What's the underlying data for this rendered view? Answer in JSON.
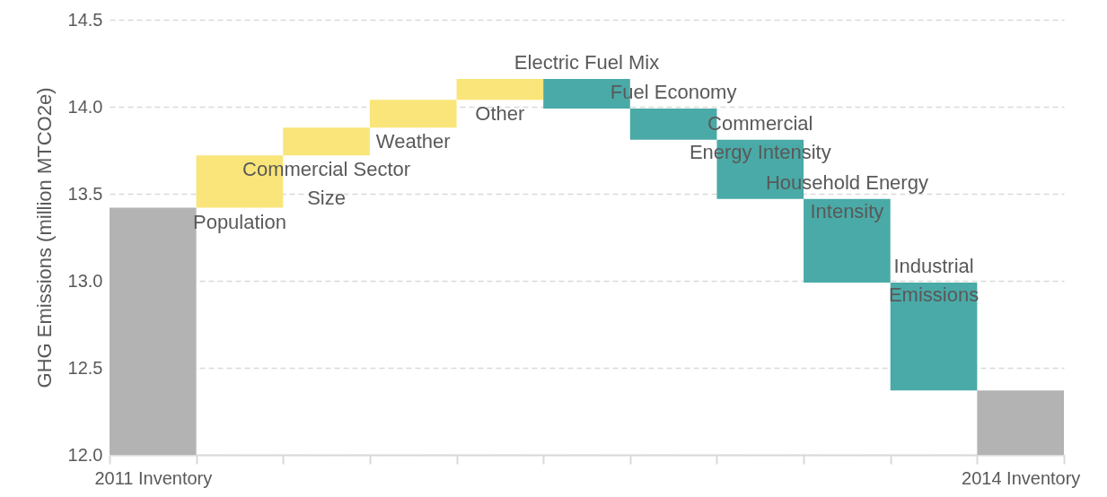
{
  "chart_data": {
    "type": "bar",
    "ylabel": "GHG Emissions (million MTCO2e)",
    "categories": [
      "2011 Inventory",
      null,
      null,
      null,
      null,
      null,
      null,
      null,
      null,
      null,
      "2014 Inventory"
    ],
    "values": [
      13.42,
      0.3,
      0.16,
      0.16,
      0.12,
      -0.17,
      -0.18,
      -0.34,
      -0.48,
      -0.62,
      12.37
    ],
    "base": [
      null,
      13.42,
      13.72,
      13.88,
      14.04,
      14.16,
      13.99,
      13.81,
      13.47,
      12.99,
      null
    ],
    "colors": [
      "#b3b3b3",
      "#f9e579",
      "#f9e579",
      "#f9e579",
      "#f9e579",
      "#4aaaa7",
      "#4aaaa7",
      "#4aaaa7",
      "#4aaaa7",
      "#4aaaa7",
      "#b3b3b3"
    ],
    "ylim": [
      12.0,
      14.5
    ],
    "yticks": [
      {
        "value": 12,
        "label": "12.0"
      },
      {
        "value": 12.5,
        "label": "12.5"
      },
      {
        "value": 13,
        "label": "13.0"
      },
      {
        "value": 13.5,
        "label": "13.5"
      },
      {
        "value": 14,
        "label": "14.0"
      },
      {
        "value": 14.5,
        "label": "14.5"
      }
    ],
    "grid": "y",
    "annotations": [
      "Population",
      "Commercial Sector\nSize",
      "Weather",
      "Other",
      "Electric Fuel Mix",
      "Fuel Economy",
      "Commercial\nEnergy Intensity",
      "Household Energy\nIntensity",
      "Industrial\nEmissions"
    ]
  }
}
